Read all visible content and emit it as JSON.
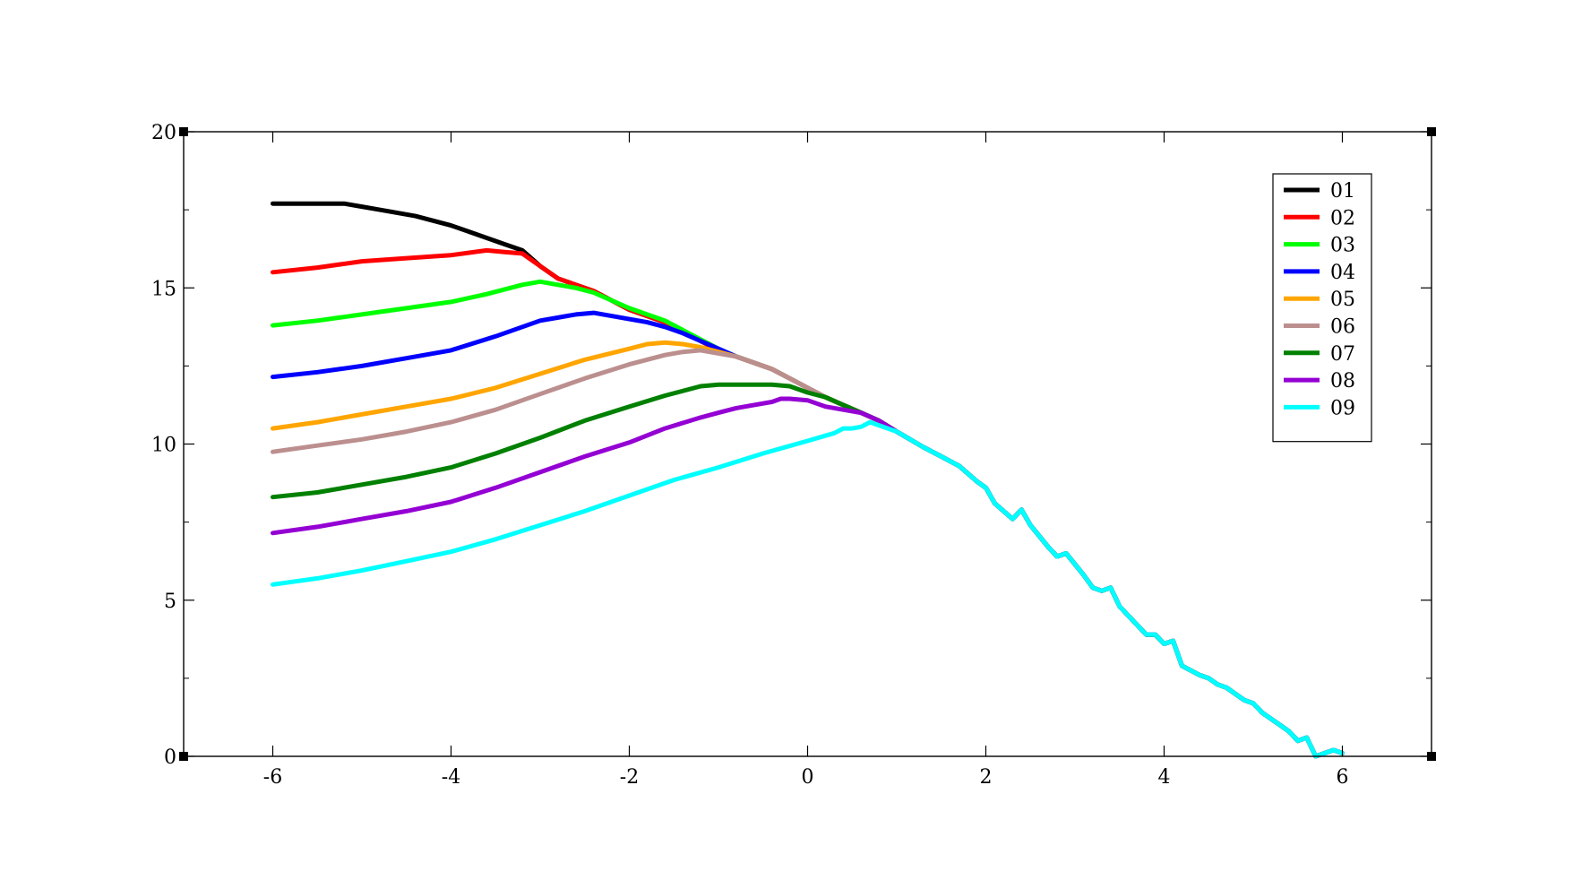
{
  "chart_data": {
    "type": "line",
    "title": "",
    "xlabel": "",
    "ylabel": "",
    "xlim": [
      -7,
      7
    ],
    "ylim": [
      0,
      20
    ],
    "xticks": [
      -6,
      -4,
      -2,
      0,
      2,
      4,
      6
    ],
    "xtick_labels": [
      "-6",
      "-4",
      "-2",
      "0",
      "2",
      "4",
      "6"
    ],
    "yticks": [
      0,
      5,
      10,
      15,
      20
    ],
    "ytick_labels": [
      "0",
      "5",
      "10",
      "15",
      "20"
    ],
    "grid": false,
    "legend_position": "top-right",
    "common_tail": {
      "x": [
        1.0,
        1.3,
        1.5,
        1.7,
        1.9,
        2.0,
        2.1,
        2.3,
        2.4,
        2.5,
        2.7,
        2.8,
        2.9,
        3.1,
        3.2,
        3.3,
        3.4,
        3.5,
        3.7,
        3.8,
        3.9,
        4.0,
        4.1,
        4.2,
        4.4,
        4.5,
        4.6,
        4.7,
        4.9,
        5.0,
        5.1,
        5.2,
        5.3,
        5.4,
        5.5,
        5.6,
        5.7,
        5.8,
        5.9,
        6.0
      ],
      "y": [
        10.4,
        9.9,
        9.6,
        9.3,
        8.8,
        8.6,
        8.1,
        7.6,
        7.9,
        7.4,
        6.7,
        6.4,
        6.5,
        5.8,
        5.4,
        5.3,
        5.4,
        4.8,
        4.2,
        3.9,
        3.9,
        3.6,
        3.7,
        2.9,
        2.6,
        2.5,
        2.3,
        2.2,
        1.8,
        1.7,
        1.4,
        1.2,
        1.0,
        0.8,
        0.5,
        0.6,
        0.0,
        0.1,
        0.2,
        0.1
      ]
    },
    "series": [
      {
        "name": "01",
        "color": "#000000",
        "x": [
          -6.0,
          -5.6,
          -5.2,
          -5.0,
          -4.8,
          -4.6,
          -4.4,
          -4.2,
          -4.0,
          -3.8,
          -3.6,
          -3.4,
          -3.2,
          -3.0,
          -2.8,
          -2.6,
          -2.4,
          -2.2,
          -2.0,
          -1.8,
          -1.6,
          -1.4,
          -1.2,
          -1.0,
          -0.8,
          -0.6,
          -0.4,
          -0.2,
          0.0,
          0.2,
          0.4,
          0.6,
          0.8
        ],
        "y": [
          17.7,
          17.7,
          17.7,
          17.6,
          17.5,
          17.4,
          17.3,
          17.15,
          17.0,
          16.8,
          16.6,
          16.4,
          16.2,
          15.7,
          15.3,
          15.1,
          14.9,
          14.6,
          14.3,
          14.1,
          13.9,
          13.6,
          13.3,
          13.0,
          12.8,
          12.6,
          12.4,
          12.1,
          11.8,
          11.5,
          11.25,
          11.0,
          10.75
        ]
      },
      {
        "name": "02",
        "color": "#ff0000",
        "x": [
          -6.0,
          -5.5,
          -5.0,
          -4.5,
          -4.0,
          -3.6,
          -3.4,
          -3.2,
          -3.0,
          -2.8,
          -2.6,
          -2.4,
          -2.2,
          -2.0,
          -1.8,
          -1.6,
          -1.4,
          -1.2,
          -1.0,
          -0.8,
          -0.6,
          -0.4,
          -0.2,
          0.0,
          0.2,
          0.4,
          0.6,
          0.8
        ],
        "y": [
          15.5,
          15.65,
          15.85,
          15.95,
          16.05,
          16.2,
          16.15,
          16.1,
          15.7,
          15.3,
          15.1,
          14.9,
          14.6,
          14.3,
          14.1,
          13.9,
          13.6,
          13.3,
          13.0,
          12.8,
          12.6,
          12.4,
          12.1,
          11.8,
          11.5,
          11.25,
          11.0,
          10.75
        ]
      },
      {
        "name": "03",
        "color": "#00ff00",
        "x": [
          -6.0,
          -5.5,
          -5.0,
          -4.5,
          -4.0,
          -3.6,
          -3.2,
          -3.0,
          -2.8,
          -2.6,
          -2.4,
          -2.2,
          -2.0,
          -1.8,
          -1.6,
          -1.4,
          -1.2,
          -1.0,
          -0.8,
          -0.6,
          -0.4,
          -0.2,
          0.0,
          0.2,
          0.4,
          0.6,
          0.8
        ],
        "y": [
          13.8,
          13.95,
          14.15,
          14.35,
          14.55,
          14.8,
          15.1,
          15.2,
          15.1,
          15.0,
          14.85,
          14.6,
          14.35,
          14.15,
          13.95,
          13.65,
          13.35,
          13.05,
          12.8,
          12.6,
          12.4,
          12.1,
          11.8,
          11.5,
          11.25,
          11.0,
          10.75
        ]
      },
      {
        "name": "04",
        "color": "#0000ff",
        "x": [
          -6.0,
          -5.5,
          -5.0,
          -4.5,
          -4.0,
          -3.5,
          -3.0,
          -2.8,
          -2.6,
          -2.4,
          -2.2,
          -2.0,
          -1.8,
          -1.6,
          -1.4,
          -1.2,
          -1.0,
          -0.8,
          -0.6,
          -0.4,
          -0.2,
          0.0,
          0.2,
          0.4,
          0.6,
          0.8
        ],
        "y": [
          12.15,
          12.3,
          12.5,
          12.75,
          13.0,
          13.45,
          13.95,
          14.05,
          14.15,
          14.2,
          14.1,
          14.0,
          13.9,
          13.75,
          13.55,
          13.3,
          13.05,
          12.8,
          12.6,
          12.4,
          12.1,
          11.8,
          11.5,
          11.25,
          11.0,
          10.75
        ]
      },
      {
        "name": "05",
        "color": "#ffa500",
        "x": [
          -6.0,
          -5.5,
          -5.0,
          -4.5,
          -4.0,
          -3.5,
          -3.0,
          -2.5,
          -2.0,
          -1.8,
          -1.6,
          -1.4,
          -1.2,
          -1.0,
          -0.8,
          -0.6,
          -0.4,
          -0.2,
          0.0,
          0.2,
          0.4,
          0.6,
          0.8
        ],
        "y": [
          10.5,
          10.7,
          10.95,
          11.2,
          11.45,
          11.8,
          12.25,
          12.7,
          13.05,
          13.2,
          13.25,
          13.2,
          13.1,
          12.95,
          12.8,
          12.6,
          12.4,
          12.1,
          11.8,
          11.5,
          11.25,
          11.0,
          10.75
        ]
      },
      {
        "name": "06",
        "color": "#bc8f8f",
        "x": [
          -6.0,
          -5.5,
          -5.0,
          -4.5,
          -4.0,
          -3.5,
          -3.0,
          -2.5,
          -2.0,
          -1.6,
          -1.4,
          -1.2,
          -1.0,
          -0.8,
          -0.6,
          -0.4,
          -0.2,
          0.0,
          0.2,
          0.4,
          0.6,
          0.8
        ],
        "y": [
          9.75,
          9.95,
          10.15,
          10.4,
          10.7,
          11.1,
          11.6,
          12.1,
          12.55,
          12.85,
          12.95,
          13.0,
          12.9,
          12.8,
          12.6,
          12.4,
          12.1,
          11.8,
          11.5,
          11.25,
          11.0,
          10.75
        ]
      },
      {
        "name": "07",
        "color": "#008000",
        "x": [
          -6.0,
          -5.5,
          -5.0,
          -4.5,
          -4.0,
          -3.5,
          -3.0,
          -2.5,
          -2.0,
          -1.6,
          -1.2,
          -1.0,
          -0.8,
          -0.6,
          -0.4,
          -0.2,
          0.0,
          0.2,
          0.4,
          0.6,
          0.8
        ],
        "y": [
          8.3,
          8.45,
          8.7,
          8.95,
          9.25,
          9.7,
          10.2,
          10.75,
          11.2,
          11.55,
          11.85,
          11.9,
          11.9,
          11.9,
          11.9,
          11.85,
          11.65,
          11.5,
          11.25,
          11.0,
          10.75
        ]
      },
      {
        "name": "08",
        "color": "#9400d3",
        "x": [
          -6.0,
          -5.5,
          -5.0,
          -4.5,
          -4.0,
          -3.5,
          -3.0,
          -2.5,
          -2.0,
          -1.6,
          -1.2,
          -1.0,
          -0.8,
          -0.6,
          -0.4,
          -0.3,
          -0.2,
          0.0,
          0.2,
          0.4,
          0.6,
          0.8
        ],
        "y": [
          7.15,
          7.35,
          7.6,
          7.85,
          8.15,
          8.6,
          9.1,
          9.6,
          10.05,
          10.5,
          10.85,
          11.0,
          11.15,
          11.25,
          11.35,
          11.45,
          11.45,
          11.4,
          11.2,
          11.1,
          11.0,
          10.75
        ]
      },
      {
        "name": "09",
        "color": "#00ffff",
        "x": [
          -6.0,
          -5.5,
          -5.0,
          -4.5,
          -4.0,
          -3.5,
          -3.0,
          -2.5,
          -2.0,
          -1.5,
          -1.0,
          -0.5,
          0.0,
          0.3,
          0.4,
          0.5,
          0.6,
          0.7,
          0.8
        ],
        "y": [
          5.5,
          5.7,
          5.95,
          6.25,
          6.55,
          6.95,
          7.4,
          7.85,
          8.35,
          8.85,
          9.25,
          9.7,
          10.1,
          10.35,
          10.5,
          10.5,
          10.55,
          10.7,
          10.6
        ]
      }
    ]
  }
}
